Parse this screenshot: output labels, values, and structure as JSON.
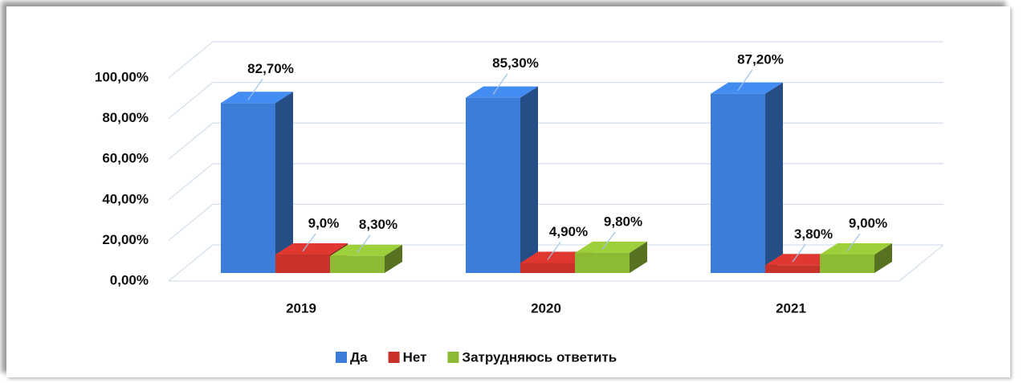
{
  "chart_data": {
    "type": "bar3d",
    "categories": [
      "2019",
      "2020",
      "2021"
    ],
    "series": [
      {
        "name": "Да",
        "color": "#3b7dd8",
        "values": [
          82.7,
          85.3,
          87.2
        ],
        "value_labels": [
          "82,70%",
          "85,30%",
          "87,20%"
        ]
      },
      {
        "name": "Нет",
        "color": "#c8322b",
        "values": [
          9.0,
          4.9,
          3.8
        ],
        "value_labels": [
          "9,0%",
          "4,90%",
          "3,80%"
        ]
      },
      {
        "name": "Затрудняюсь ответить",
        "color": "#8cba35",
        "values": [
          8.3,
          9.8,
          9.0
        ],
        "value_labels": [
          "8,30%",
          "9,80%",
          "9,00%"
        ]
      }
    ],
    "ylim": [
      0,
      100
    ],
    "yticks": [
      {
        "value": 0,
        "label": "0,00%"
      },
      {
        "value": 20,
        "label": "20,00%"
      },
      {
        "value": 40,
        "label": "40,00%"
      },
      {
        "value": 60,
        "label": "60,00%"
      },
      {
        "value": 80,
        "label": "80,00%"
      },
      {
        "value": 100,
        "label": "100,00%"
      }
    ],
    "grid": true,
    "legend": "bottom"
  }
}
